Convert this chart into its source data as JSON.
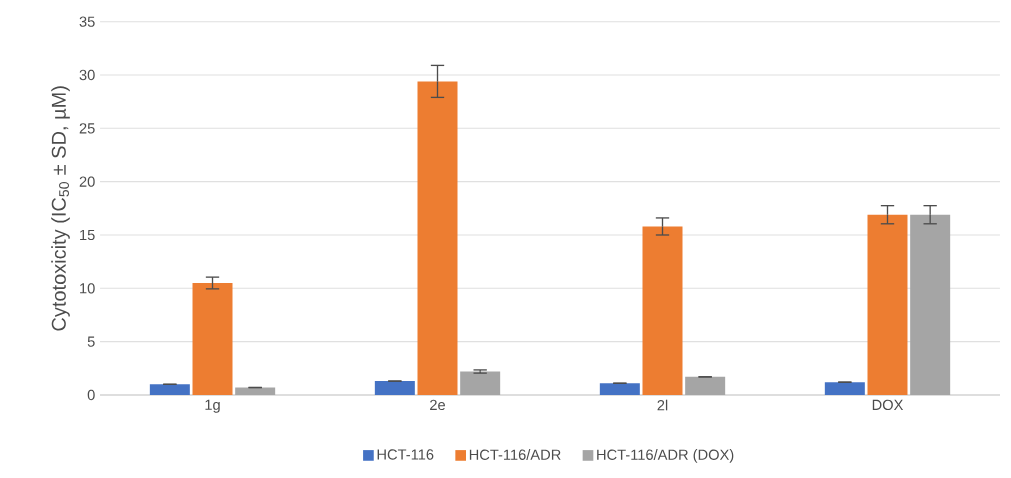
{
  "chart_data": {
    "type": "bar",
    "ylabel": "Cytotoxicity (IC$_{50}$ ± SD, µM)",
    "categories": [
      "1g",
      "2e",
      "2l",
      "DOX"
    ],
    "series": [
      {
        "name": "HCT-116",
        "color": "#4472c4",
        "values": [
          1.0,
          1.3,
          1.1,
          1.2
        ],
        "errors": [
          null,
          null,
          null,
          null
        ]
      },
      {
        "name": "HCT-116/ADR",
        "color": "#ed7d31",
        "values": [
          10.5,
          29.4,
          15.8,
          16.9
        ],
        "errors": [
          0.55,
          1.5,
          0.8,
          0.85
        ]
      },
      {
        "name": "HCT-116/ADR (DOX)",
        "color": "#a5a5a5",
        "values": [
          0.7,
          2.2,
          1.7,
          16.9
        ],
        "errors": [
          null,
          0.15,
          null,
          0.85
        ]
      }
    ],
    "ylim": [
      0,
      35
    ],
    "yticks": [
      0,
      5,
      10,
      15,
      20,
      25,
      30,
      35
    ],
    "grid": "y",
    "legend": "bottom"
  }
}
